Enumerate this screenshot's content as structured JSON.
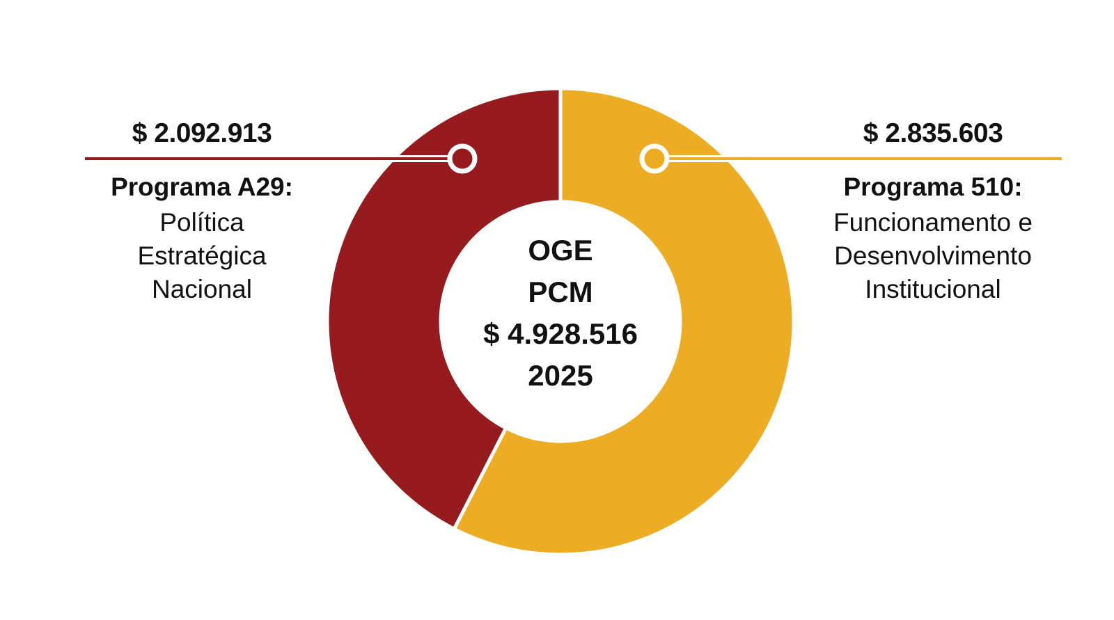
{
  "chart_data": {
    "type": "pie",
    "donut": true,
    "center": {
      "line1": "OGE",
      "line2": "PCM",
      "total": "$ 4.928.516",
      "year": "2025"
    },
    "total_value": 4928516,
    "slices": [
      {
        "value": 2092913,
        "value_label": "$ 2.092.913",
        "title": "Programa A29:",
        "description": "Política\nEstratégica\nNacional",
        "color": "#961b1f"
      },
      {
        "value": 2835603,
        "value_label": "$ 2.835.603",
        "title": "Programa 510:",
        "description": "Funcionamento e\nDesenvolvimento\nInstitucional",
        "color": "#ecac23"
      }
    ],
    "legend": "callouts"
  }
}
